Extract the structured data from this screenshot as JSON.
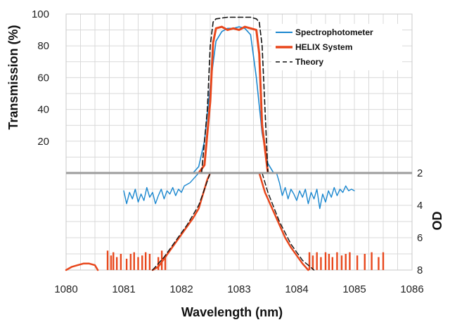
{
  "chart_data": {
    "type": "line",
    "title": "",
    "xlabel": "Wavelength (nm)",
    "ylabel_left": "Transmission (%)",
    "ylabel_right": "OD",
    "xlim": [
      1080,
      1086
    ],
    "x_ticks": [
      "1080",
      "1081",
      "1082",
      "1083",
      "1084",
      "1085",
      "1086"
    ],
    "ylim_transmission": [
      0,
      100
    ],
    "y_ticks_transmission": [
      "20",
      "40",
      "60",
      "80",
      "100"
    ],
    "ylim_od": [
      2,
      8
    ],
    "y_ticks_od": [
      "2",
      "4",
      "6",
      "8"
    ],
    "grid": true,
    "legend_position": "top-right",
    "colors": {
      "spectrophotometer": "#1a87cf",
      "helix": "#e8471c",
      "theory": "#111111",
      "divider": "#9c9c9c",
      "grid": "#d9d9d9"
    },
    "series": [
      {
        "name": "Spectrophotometer",
        "panel": "transmission",
        "x": [
          1082.2,
          1082.3,
          1082.4,
          1082.5,
          1082.6,
          1082.7,
          1082.8,
          1082.9,
          1083.0,
          1083.1,
          1083.2,
          1083.3,
          1083.4,
          1083.5,
          1083.6
        ],
        "y": [
          0,
          4,
          20,
          55,
          83,
          89,
          91,
          91,
          92,
          91,
          87,
          60,
          25,
          6,
          0
        ]
      },
      {
        "name": "HELIX System",
        "panel": "transmission",
        "x": [
          1082.3,
          1082.4,
          1082.5,
          1082.55,
          1082.6,
          1082.7,
          1082.8,
          1082.9,
          1083.0,
          1083.1,
          1083.2,
          1083.3,
          1083.35,
          1083.4,
          1083.5
        ],
        "y": [
          0,
          5,
          45,
          82,
          91,
          92,
          90,
          91,
          90,
          92,
          91,
          90,
          75,
          30,
          0
        ]
      },
      {
        "name": "Theory",
        "panel": "transmission",
        "x": [
          1082.35,
          1082.45,
          1082.5,
          1082.55,
          1082.6,
          1082.8,
          1083.0,
          1083.2,
          1083.3,
          1083.35,
          1083.4,
          1083.45,
          1083.5
        ],
        "y": [
          0,
          40,
          80,
          95,
          97,
          98,
          98,
          98,
          97,
          95,
          80,
          40,
          0
        ]
      },
      {
        "panel": "od",
        "x": [
          1081.0,
          1081.05,
          1081.1,
          1081.15,
          1081.2,
          1081.25,
          1081.3,
          1081.35,
          1081.4,
          1081.45,
          1081.5,
          1081.55,
          1081.6,
          1081.65,
          1081.7,
          1081.75,
          1081.8,
          1081.85,
          1081.9,
          1081.95,
          1082.0,
          1082.05,
          1082.1,
          1082.15,
          1082.2,
          1082.3
        ],
        "y": [
          3.1,
          3.9,
          3.2,
          3.6,
          3.0,
          3.8,
          3.3,
          3.7,
          2.9,
          3.5,
          3.2,
          3.9,
          3.4,
          3.0,
          3.6,
          3.1,
          3.3,
          2.9,
          3.4,
          3.0,
          3.2,
          2.8,
          2.7,
          2.6,
          2.4,
          2.0
        ]
      },
      {
        "panel": "od",
        "x": [
          1083.65,
          1083.7,
          1083.75,
          1083.8,
          1083.85,
          1083.9,
          1083.95,
          1084.0,
          1084.05,
          1084.1,
          1084.15,
          1084.2,
          1084.25,
          1084.3,
          1084.35,
          1084.4,
          1084.45,
          1084.5,
          1084.55,
          1084.6,
          1084.65,
          1084.7,
          1084.75,
          1084.8,
          1084.85,
          1084.9,
          1084.95,
          1085.0
        ],
        "y": [
          2.0,
          2.6,
          3.4,
          2.9,
          3.6,
          3.0,
          3.3,
          3.7,
          3.1,
          3.5,
          3.0,
          3.9,
          3.2,
          3.6,
          3.0,
          4.2,
          3.3,
          3.8,
          3.1,
          3.5,
          2.9,
          3.4,
          3.0,
          3.2,
          2.8,
          3.1,
          3.0,
          3.1
        ]
      },
      {
        "panel": "od",
        "x": [
          1080.0,
          1080.1,
          1080.2,
          1080.3,
          1080.4,
          1080.5,
          1080.55
        ],
        "y": [
          8.0,
          7.8,
          7.7,
          7.6,
          7.6,
          7.7,
          8.0
        ]
      },
      {
        "panel": "od",
        "x": [
          1081.5,
          1081.6,
          1081.7,
          1081.8,
          1081.9,
          1082.0,
          1082.1,
          1082.2,
          1082.3,
          1082.35,
          1082.4,
          1082.45,
          1082.5
        ],
        "y": [
          8.0,
          7.8,
          7.3,
          6.8,
          6.3,
          5.8,
          5.3,
          4.8,
          4.2,
          3.6,
          3.0,
          2.4,
          2.0
        ]
      },
      {
        "panel": "od",
        "x": [
          1083.35,
          1083.4,
          1083.45,
          1083.5,
          1083.55,
          1083.6,
          1083.7,
          1083.8,
          1083.9,
          1084.0,
          1084.1,
          1084.2
        ],
        "y": [
          2.0,
          2.6,
          3.2,
          3.6,
          4.0,
          4.4,
          5.2,
          6.0,
          6.6,
          7.1,
          7.6,
          8.0
        ]
      },
      {
        "panel": "od",
        "x": [
          1081.5,
          1081.7,
          1081.9,
          1082.1,
          1082.3,
          1082.4,
          1082.5
        ],
        "y": [
          8.0,
          7.2,
          6.2,
          5.2,
          4.0,
          3.0,
          2.0
        ]
      },
      {
        "panel": "od",
        "x": [
          1083.4,
          1083.5,
          1083.7,
          1083.9,
          1084.1,
          1084.3
        ],
        "y": [
          2.0,
          3.2,
          5.0,
          6.4,
          7.4,
          8.0
        ]
      }
    ],
    "helix_spikes_od": [
      {
        "x": 1080.72,
        "top": 6.8
      },
      {
        "x": 1080.78,
        "top": 7.1
      },
      {
        "x": 1080.82,
        "top": 6.9
      },
      {
        "x": 1080.88,
        "top": 7.2
      },
      {
        "x": 1080.95,
        "top": 7.0
      },
      {
        "x": 1081.05,
        "top": 7.3
      },
      {
        "x": 1081.12,
        "top": 7.0
      },
      {
        "x": 1081.18,
        "top": 6.9
      },
      {
        "x": 1081.25,
        "top": 7.2
      },
      {
        "x": 1081.32,
        "top": 7.1
      },
      {
        "x": 1081.38,
        "top": 6.9
      },
      {
        "x": 1081.45,
        "top": 7.0
      },
      {
        "x": 1081.6,
        "top": 7.2
      },
      {
        "x": 1081.66,
        "top": 6.8
      },
      {
        "x": 1081.72,
        "top": 7.1
      },
      {
        "x": 1084.22,
        "top": 6.9
      },
      {
        "x": 1084.28,
        "top": 7.1
      },
      {
        "x": 1084.35,
        "top": 6.9
      },
      {
        "x": 1084.42,
        "top": 7.2
      },
      {
        "x": 1084.5,
        "top": 6.9
      },
      {
        "x": 1084.56,
        "top": 7.0
      },
      {
        "x": 1084.62,
        "top": 7.2
      },
      {
        "x": 1084.7,
        "top": 6.9
      },
      {
        "x": 1084.78,
        "top": 7.1
      },
      {
        "x": 1084.85,
        "top": 7.0
      },
      {
        "x": 1084.92,
        "top": 6.9
      },
      {
        "x": 1085.05,
        "top": 7.1
      },
      {
        "x": 1085.18,
        "top": 7.0
      },
      {
        "x": 1085.3,
        "top": 6.9
      },
      {
        "x": 1085.42,
        "top": 7.2
      },
      {
        "x": 1085.5,
        "top": 6.9
      }
    ]
  }
}
